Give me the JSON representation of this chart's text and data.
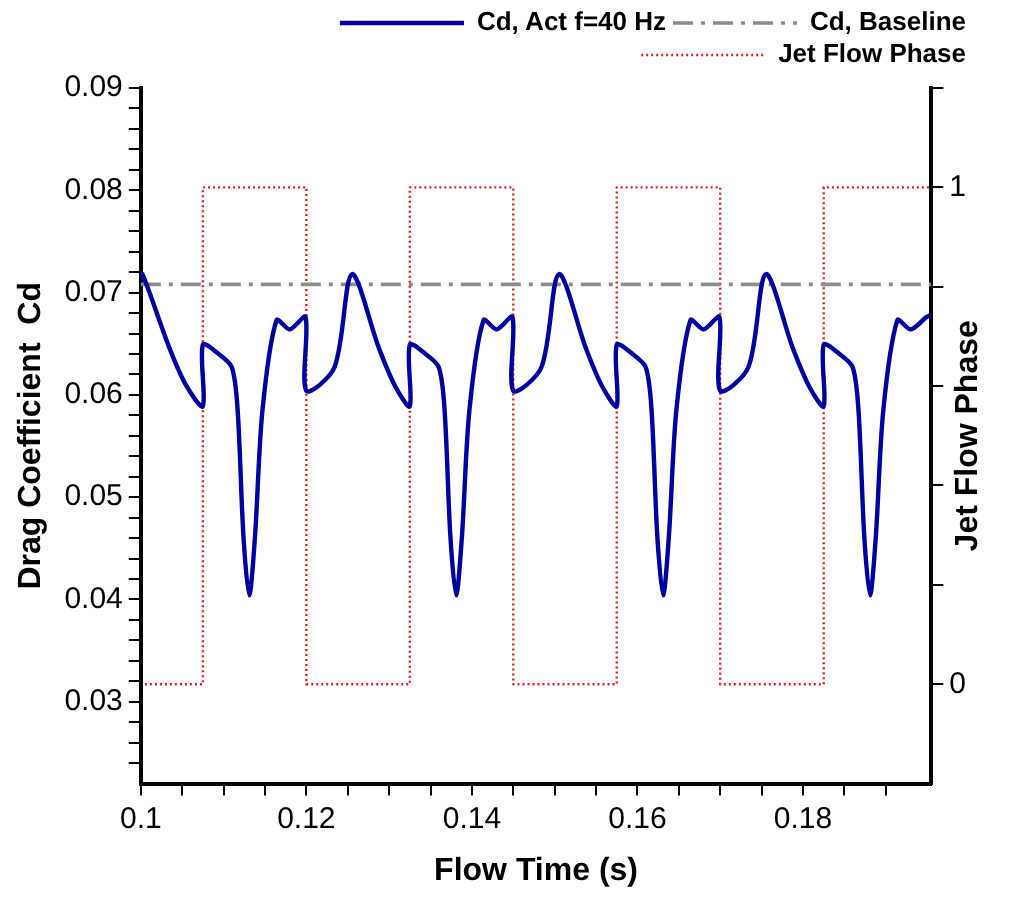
{
  "chart_data": {
    "type": "line",
    "xlabel": "Flow Time (s)",
    "ylabel": "Drag Coefficient  Cd",
    "y2label": "Jet Flow Phase",
    "xlim": [
      0.1,
      0.1955
    ],
    "xticks": [
      0.1,
      {
        "value": 0.105,
        "label": null
      },
      {
        "value": 0.11,
        "label": null
      },
      {
        "value": 0.115,
        "label": null
      },
      0.12,
      {
        "value": 0.125,
        "label": null
      },
      {
        "value": 0.13,
        "label": null
      },
      {
        "value": 0.135,
        "label": null
      },
      0.14,
      {
        "value": 0.145,
        "label": null
      },
      {
        "value": 0.15,
        "label": null
      },
      {
        "value": 0.155,
        "label": null
      },
      0.16,
      {
        "value": 0.165,
        "label": null
      },
      {
        "value": 0.17,
        "label": null
      },
      {
        "value": 0.175,
        "label": null
      },
      0.18,
      {
        "value": 0.185,
        "label": null
      },
      {
        "value": 0.19,
        "label": null
      }
    ],
    "ylim": [
      0.022,
      0.09
    ],
    "yticks": [
      {
        "value": 0.024,
        "label": null
      },
      {
        "value": 0.026,
        "label": null
      },
      {
        "value": 0.028,
        "label": null
      },
      0.03,
      {
        "value": 0.032,
        "label": null
      },
      {
        "value": 0.034,
        "label": null
      },
      {
        "value": 0.036,
        "label": null
      },
      {
        "value": 0.038,
        "label": null
      },
      0.04,
      {
        "value": 0.042,
        "label": null
      },
      {
        "value": 0.044,
        "label": null
      },
      {
        "value": 0.046,
        "label": null
      },
      {
        "value": 0.048,
        "label": null
      },
      0.05,
      {
        "value": 0.052,
        "label": null
      },
      {
        "value": 0.054,
        "label": null
      },
      {
        "value": 0.056,
        "label": null
      },
      {
        "value": 0.058,
        "label": null
      },
      0.06,
      {
        "value": 0.062,
        "label": null
      },
      {
        "value": 0.064,
        "label": null
      },
      {
        "value": 0.066,
        "label": null
      },
      {
        "value": 0.068,
        "label": null
      },
      0.07,
      {
        "value": 0.072,
        "label": null
      },
      {
        "value": 0.074,
        "label": null
      },
      {
        "value": 0.076,
        "label": null
      },
      {
        "value": 0.078,
        "label": null
      },
      0.08,
      {
        "value": 0.082,
        "label": null
      },
      {
        "value": 0.084,
        "label": null
      },
      {
        "value": 0.086,
        "label": null
      },
      {
        "value": 0.088,
        "label": null
      },
      0.09
    ],
    "y2lim": [
      -0.2,
      1.2
    ],
    "y2ticks": [
      0,
      {
        "value": 0.2,
        "label": null
      },
      {
        "value": 0.4,
        "label": null
      },
      {
        "value": 0.6,
        "label": null
      },
      {
        "value": 0.8,
        "label": null
      },
      1,
      {
        "value": 1.2,
        "label": null
      }
    ],
    "grid": false,
    "legend": "top right",
    "marker": "none",
    "series": [
      {
        "name": "Cd, Act f=40 Hz",
        "color": "#0000a0",
        "line_style": "solid",
        "x": [
          0.1,
          0.1002,
          0.1035,
          0.1055,
          0.1075,
          0.1075,
          0.1094,
          0.111,
          0.1117,
          0.1124,
          0.1131,
          0.1138,
          0.1147,
          0.1164,
          0.118,
          0.1199,
          0.12,
          0.1234,
          0.1255,
          0.1288,
          0.1307,
          0.1325,
          0.1325,
          0.1344,
          0.136,
          0.1367,
          0.1374,
          0.1381,
          0.1388,
          0.1397,
          0.1414,
          0.143,
          0.1449,
          0.145,
          0.1484,
          0.1505,
          0.1538,
          0.1557,
          0.1575,
          0.1575,
          0.1594,
          0.161,
          0.1617,
          0.1624,
          0.1631,
          0.1638,
          0.1647,
          0.1664,
          0.168,
          0.1699,
          0.17,
          0.1734,
          0.1755,
          0.1788,
          0.1807,
          0.1825,
          0.1825,
          0.1844,
          0.186,
          0.1867,
          0.1874,
          0.1881,
          0.1888,
          0.1897,
          0.1914,
          0.193,
          0.1949,
          0.1954
        ],
        "values": [
          0.0712,
          0.0718,
          0.0645,
          0.0609,
          0.0589,
          0.0649,
          0.064,
          0.0627,
          0.0585,
          0.0462,
          0.0404,
          0.0462,
          0.0585,
          0.0673,
          0.0664,
          0.0676,
          0.0604,
          0.0627,
          0.0718,
          0.0645,
          0.0609,
          0.0589,
          0.0649,
          0.064,
          0.0627,
          0.0585,
          0.0462,
          0.0404,
          0.0462,
          0.0585,
          0.0673,
          0.0664,
          0.0676,
          0.0604,
          0.0627,
          0.0718,
          0.0645,
          0.0609,
          0.0589,
          0.0649,
          0.064,
          0.0627,
          0.0585,
          0.0462,
          0.0404,
          0.0462,
          0.0585,
          0.0673,
          0.0664,
          0.0676,
          0.0604,
          0.0627,
          0.0718,
          0.0645,
          0.0609,
          0.0589,
          0.0649,
          0.064,
          0.0627,
          0.0585,
          0.0462,
          0.0404,
          0.0462,
          0.0585,
          0.0673,
          0.0664,
          0.0676,
          0.0678
        ]
      },
      {
        "name": "Cd, Baseline",
        "color": "#8c8c8c",
        "line_style": "dashed",
        "x": [
          0.1,
          0.1955
        ],
        "values": [
          0.0708,
          0.0708
        ]
      },
      {
        "name": "Jet Flow Phase",
        "color": "#e02020",
        "line_style": "dotted",
        "axis": "y2",
        "x": [
          0.1005,
          0.1075,
          0.1075,
          0.12,
          0.12,
          0.1325,
          0.1325,
          0.145,
          0.145,
          0.1575,
          0.1575,
          0.17,
          0.17,
          0.1825,
          0.1825,
          0.1954
        ],
        "values": [
          0,
          0,
          1,
          1,
          0,
          0,
          1,
          1,
          0,
          0,
          1,
          1,
          0,
          0,
          1,
          1
        ]
      }
    ]
  }
}
